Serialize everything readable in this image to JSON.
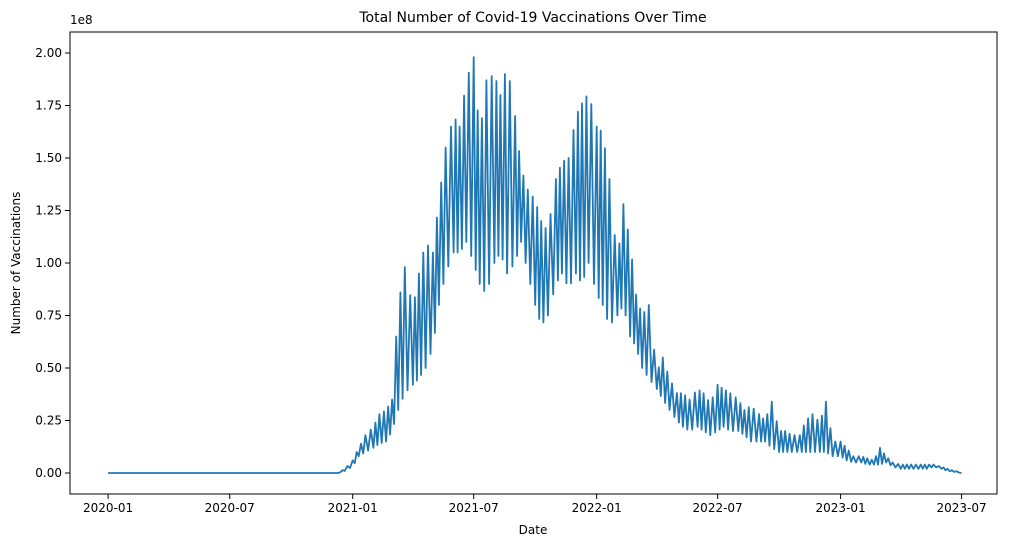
{
  "chart_data": {
    "type": "line",
    "title": "Total Number of Covid-19 Vaccinations Over Time",
    "xlabel": "Date",
    "ylabel": "Number of Vaccinations",
    "y_multiplier_label": "1e8",
    "y_unit_multiplier": 100000000,
    "xlim": [
      "2019-11-05",
      "2023-08-23"
    ],
    "ylim": [
      -0.1,
      2.1
    ],
    "x_ticks": [
      {
        "date": "2020-01-01",
        "label": "2020-01"
      },
      {
        "date": "2020-07-01",
        "label": "2020-07"
      },
      {
        "date": "2021-01-01",
        "label": "2021-01"
      },
      {
        "date": "2021-07-01",
        "label": "2021-07"
      },
      {
        "date": "2022-01-01",
        "label": "2022-01"
      },
      {
        "date": "2022-07-01",
        "label": "2022-07"
      },
      {
        "date": "2023-01-01",
        "label": "2023-01"
      },
      {
        "date": "2023-07-01",
        "label": "2023-07"
      }
    ],
    "y_ticks": [
      {
        "value": 0.0,
        "label": "0.00"
      },
      {
        "value": 0.25,
        "label": "0.25"
      },
      {
        "value": 0.5,
        "label": "0.50"
      },
      {
        "value": 0.75,
        "label": "0.75"
      },
      {
        "value": 1.0,
        "label": "1.00"
      },
      {
        "value": 1.25,
        "label": "1.25"
      },
      {
        "value": 1.5,
        "label": "1.50"
      },
      {
        "value": 1.75,
        "label": "1.75"
      },
      {
        "value": 2.0,
        "label": "2.00"
      }
    ],
    "grid": false,
    "legend": "none",
    "line_color": "#1f77b4",
    "series": [
      {
        "name": "",
        "x": [
          "2020-01-01",
          "2020-12-01",
          "2020-12-10",
          "2020-12-20",
          "2021-01-01",
          "2021-01-10",
          "2021-01-20",
          "2021-02-01",
          "2021-02-10",
          "2021-02-20",
          "2021-03-01",
          "2021-03-10",
          "2021-03-20",
          "2021-04-01",
          "2021-04-10",
          "2021-04-20",
          "2021-05-01",
          "2021-05-10",
          "2021-05-20",
          "2021-06-01",
          "2021-06-10",
          "2021-06-20",
          "2021-07-01",
          "2021-07-10",
          "2021-07-20",
          "2021-08-01",
          "2021-08-10",
          "2021-08-20",
          "2021-09-01",
          "2021-09-10",
          "2021-09-20",
          "2021-10-01",
          "2021-10-10",
          "2021-10-20",
          "2021-11-01",
          "2021-11-10",
          "2021-11-20",
          "2021-12-01",
          "2021-12-10",
          "2021-12-20",
          "2022-01-01",
          "2022-01-10",
          "2022-01-20",
          "2022-02-01",
          "2022-02-10",
          "2022-02-20",
          "2022-03-01",
          "2022-03-10",
          "2022-03-20",
          "2022-04-01",
          "2022-04-10",
          "2022-04-20",
          "2022-05-01",
          "2022-05-10",
          "2022-05-20",
          "2022-06-01",
          "2022-06-10",
          "2022-06-20",
          "2022-07-01",
          "2022-07-10",
          "2022-07-20",
          "2022-08-01",
          "2022-08-10",
          "2022-08-20",
          "2022-09-01",
          "2022-09-10",
          "2022-09-20",
          "2022-10-01",
          "2022-10-10",
          "2022-10-20",
          "2022-11-01",
          "2022-11-10",
          "2022-11-20",
          "2022-12-01",
          "2022-12-10",
          "2022-12-20",
          "2023-01-01",
          "2023-01-10",
          "2023-01-20",
          "2023-02-01",
          "2023-02-10",
          "2023-02-20",
          "2023-03-01",
          "2023-03-10",
          "2023-03-20",
          "2023-04-01",
          "2023-04-10",
          "2023-04-20",
          "2023-05-01",
          "2023-05-10",
          "2023-05-20",
          "2023-06-01",
          "2023-06-10",
          "2023-06-20",
          "2023-07-01"
        ],
        "low": [
          0.0,
          0.0,
          0.0,
          0.01,
          0.03,
          0.08,
          0.1,
          0.12,
          0.14,
          0.15,
          0.2,
          0.3,
          0.38,
          0.42,
          0.45,
          0.5,
          0.6,
          0.8,
          0.95,
          1.05,
          1.05,
          1.1,
          1.0,
          0.9,
          0.85,
          1.0,
          1.05,
          0.95,
          1.0,
          1.1,
          0.95,
          0.8,
          0.7,
          0.75,
          0.9,
          0.95,
          0.88,
          0.95,
          0.9,
          1.0,
          0.85,
          0.8,
          0.7,
          0.75,
          0.8,
          0.65,
          0.6,
          0.5,
          0.45,
          0.4,
          0.35,
          0.3,
          0.25,
          0.22,
          0.2,
          0.22,
          0.2,
          0.18,
          0.2,
          0.22,
          0.2,
          0.2,
          0.18,
          0.15,
          0.15,
          0.15,
          0.12,
          0.1,
          0.1,
          0.1,
          0.1,
          0.1,
          0.1,
          0.1,
          0.1,
          0.08,
          0.08,
          0.06,
          0.05,
          0.05,
          0.04,
          0.04,
          0.04,
          0.05,
          0.03,
          0.02,
          0.02,
          0.02,
          0.02,
          0.02,
          0.03,
          0.02,
          0.01,
          0.005,
          0.0
        ],
        "high": [
          0.0,
          0.0,
          0.0,
          0.02,
          0.06,
          0.12,
          0.18,
          0.22,
          0.28,
          0.3,
          0.35,
          0.8,
          0.98,
          0.78,
          0.95,
          1.1,
          1.05,
          1.3,
          1.55,
          1.7,
          1.65,
          1.87,
          1.98,
          1.6,
          1.87,
          1.9,
          1.8,
          1.95,
          1.7,
          1.45,
          1.35,
          1.3,
          1.2,
          1.15,
          1.4,
          1.48,
          1.5,
          1.7,
          1.76,
          1.81,
          1.65,
          1.62,
          1.4,
          1.0,
          1.28,
          1.1,
          0.85,
          0.75,
          0.8,
          0.48,
          0.55,
          0.45,
          0.38,
          0.38,
          0.35,
          0.4,
          0.38,
          0.33,
          0.42,
          0.4,
          0.38,
          0.35,
          0.3,
          0.32,
          0.28,
          0.25,
          0.34,
          0.2,
          0.2,
          0.18,
          0.18,
          0.25,
          0.28,
          0.24,
          0.34,
          0.15,
          0.15,
          0.12,
          0.08,
          0.08,
          0.07,
          0.06,
          0.12,
          0.08,
          0.05,
          0.04,
          0.04,
          0.04,
          0.04,
          0.04,
          0.04,
          0.03,
          0.02,
          0.01,
          0.005
        ]
      }
    ]
  }
}
